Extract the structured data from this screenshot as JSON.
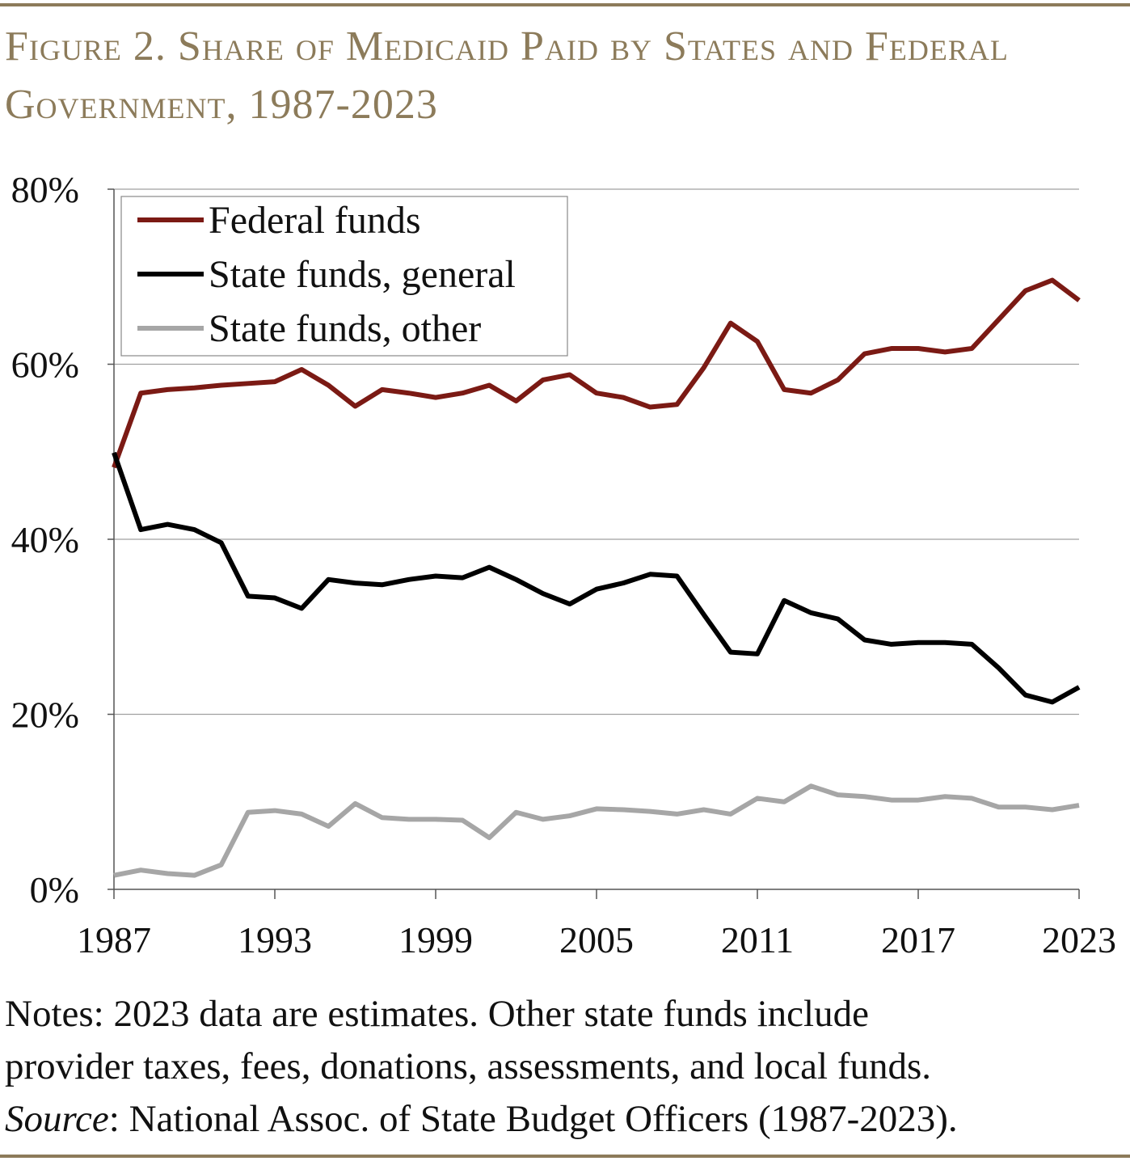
{
  "title": "Figure 2. Share of Medicaid Paid by States and Federal Government, 1987-2023",
  "notes": {
    "line1": "Notes: 2023 data are estimates.  Other state funds include",
    "line2": "provider taxes, fees, donations, assessments, and local funds.",
    "source_label": "Source",
    "source_text": ": National Assoc. of State Budget Officers (1987-2023)."
  },
  "chart_data": {
    "type": "line",
    "title": "Figure 2. Share of Medicaid Paid by States and Federal Government, 1987-2023",
    "xlabel": "",
    "ylabel": "",
    "xlim": [
      1987,
      2023
    ],
    "ylim": [
      0,
      80
    ],
    "x_ticks": [
      1987,
      1993,
      1999,
      2005,
      2011,
      2017,
      2023
    ],
    "y_ticks": [
      "0%",
      "20%",
      "40%",
      "60%",
      "80%"
    ],
    "y_tick_values": [
      0,
      20,
      40,
      60,
      80
    ],
    "grid": "horizontal",
    "legend_position": "top-left",
    "x": [
      1987,
      1988,
      1989,
      1990,
      1991,
      1992,
      1993,
      1994,
      1995,
      1996,
      1997,
      1998,
      1999,
      2000,
      2001,
      2002,
      2003,
      2004,
      2005,
      2006,
      2007,
      2008,
      2009,
      2010,
      2011,
      2012,
      2013,
      2014,
      2015,
      2016,
      2017,
      2018,
      2019,
      2020,
      2021,
      2022,
      2023
    ],
    "series": [
      {
        "name": "Federal funds",
        "color": "#7b1a14",
        "values": [
          48.2,
          56.7,
          57.1,
          57.3,
          57.6,
          57.8,
          58.0,
          59.4,
          57.6,
          55.2,
          57.1,
          56.7,
          56.2,
          56.7,
          57.6,
          55.8,
          58.2,
          58.8,
          56.7,
          56.2,
          55.1,
          55.4,
          59.6,
          64.7,
          62.6,
          57.1,
          56.7,
          58.2,
          61.2,
          61.8,
          61.8,
          61.4,
          61.8,
          65.1,
          68.4,
          69.6,
          67.3
        ]
      },
      {
        "name": "State funds, general",
        "color": "#000000",
        "values": [
          49.9,
          41.1,
          41.7,
          41.1,
          39.6,
          33.5,
          33.3,
          32.1,
          35.4,
          35.0,
          34.8,
          35.4,
          35.8,
          35.6,
          36.8,
          35.4,
          33.8,
          32.6,
          34.3,
          35.0,
          36.0,
          35.8,
          31.4,
          27.1,
          26.9,
          33.0,
          31.6,
          30.9,
          28.5,
          28.0,
          28.2,
          28.2,
          28.0,
          25.3,
          22.2,
          21.4,
          23.1
        ]
      },
      {
        "name": "State funds, other",
        "color": "#a6a6a6",
        "values": [
          1.6,
          2.2,
          1.8,
          1.6,
          2.8,
          8.8,
          9.0,
          8.6,
          7.2,
          9.8,
          8.2,
          8.0,
          8.0,
          7.9,
          5.9,
          8.8,
          8.0,
          8.4,
          9.2,
          9.1,
          8.9,
          8.6,
          9.1,
          8.6,
          10.4,
          10.0,
          11.8,
          10.8,
          10.6,
          10.2,
          10.2,
          10.6,
          10.4,
          9.4,
          9.4,
          9.1,
          9.6
        ]
      }
    ]
  }
}
